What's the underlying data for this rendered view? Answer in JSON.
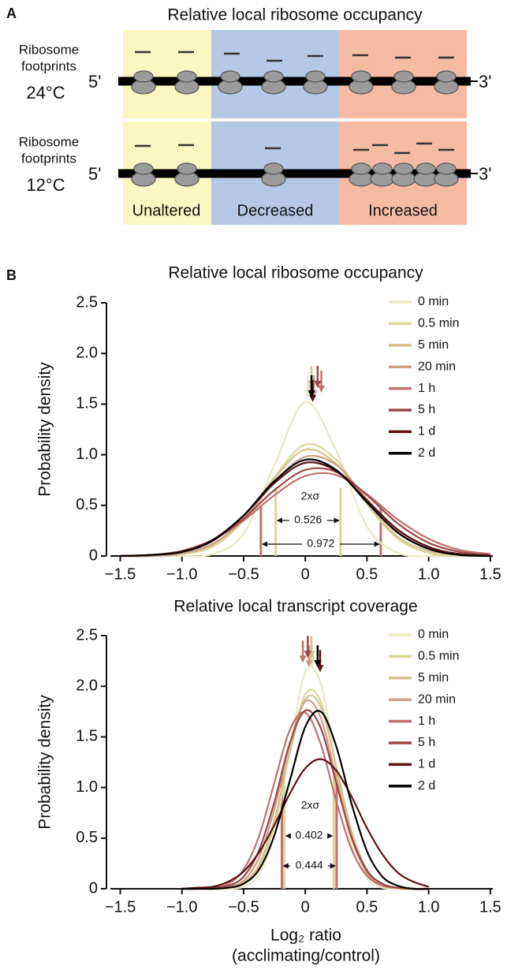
{
  "panel_a": {
    "label": "A",
    "title": "Relative local ribosome occupancy",
    "rows": [
      {
        "footprints": [
          "Ribosome",
          "footprints"
        ],
        "temperature": "24°C",
        "five_prime": "5'",
        "three_prime": "3'"
      },
      {
        "footprints": [
          "Ribosome",
          "footprints"
        ],
        "temperature": "12°C",
        "five_prime": "5'",
        "three_prime": "3'"
      }
    ],
    "regions": [
      "Unaltered",
      "Decreased",
      "Increased"
    ]
  },
  "panel_b_label": "B",
  "chart_data": [
    {
      "type": "line",
      "title": "Relative local ribosome occupancy",
      "y_label": "Probability density",
      "x": [
        -1.5,
        -1.25,
        -1,
        -0.75,
        -0.5,
        -0.25,
        0,
        0.25,
        0.5,
        0.75,
        1,
        1.25,
        1.5
      ],
      "xlim": [
        -1.58,
        1.52
      ],
      "ylim": [
        0,
        2.5
      ],
      "xticks": [
        {
          "value": -1.5,
          "label": "−1.5"
        },
        {
          "value": -1,
          "label": "−1.0"
        },
        {
          "value": -0.5,
          "label": "−0.5"
        },
        0,
        0.5,
        {
          "value": 1,
          "label": "1.0"
        },
        1.5
      ],
      "yticks": [
        0,
        0.5,
        {
          "value": 1,
          "label": "1.0"
        },
        1.5,
        {
          "value": 2,
          "label": "2.0"
        },
        2.5
      ],
      "legend": "upper right",
      "series": [
        {
          "name": "0 min",
          "color": "#ebe8c3",
          "mean": 0.02,
          "values": [
            0,
            0,
            0,
            0.02,
            0.22,
            0.9,
            1.52,
            1.04,
            0.29,
            0.03,
            0,
            0,
            0
          ]
        },
        {
          "name": "0.5 min",
          "color": "#dbd799",
          "mean": 0.05,
          "values": [
            0,
            0,
            0.02,
            0.09,
            0.35,
            0.78,
            1.1,
            0.95,
            0.51,
            0.17,
            0.03,
            0,
            0
          ]
        },
        {
          "name": "5 min",
          "color": "#d5bf8f",
          "mean": 0.05,
          "values": [
            0,
            0,
            0.02,
            0.11,
            0.37,
            0.77,
            1.05,
            0.91,
            0.52,
            0.19,
            0.05,
            0.01,
            0
          ]
        },
        {
          "name": "20 min",
          "color": "#cf9e85",
          "mean": 0.07,
          "values": [
            0,
            0,
            0.03,
            0.12,
            0.36,
            0.73,
            0.98,
            0.9,
            0.56,
            0.24,
            0.07,
            0.01,
            0
          ]
        },
        {
          "name": "1 h",
          "color": "#c26f6f",
          "mean": 0.13,
          "values": [
            0,
            0.01,
            0.05,
            0.16,
            0.35,
            0.6,
            0.79,
            0.8,
            0.61,
            0.36,
            0.17,
            0.06,
            0.02
          ]
        },
        {
          "name": "5 h",
          "color": "#994747",
          "mean": 0.1,
          "values": [
            0,
            0.01,
            0.05,
            0.16,
            0.37,
            0.65,
            0.85,
            0.83,
            0.6,
            0.32,
            0.13,
            0.04,
            0.01
          ]
        },
        {
          "name": "1 d",
          "color": "#5a1212",
          "mean": 0.06,
          "values": [
            0,
            0.01,
            0.04,
            0.16,
            0.4,
            0.72,
            0.92,
            0.84,
            0.55,
            0.26,
            0.09,
            0.02,
            0
          ]
        },
        {
          "name": "2 d",
          "color": "#000000",
          "mean": 0.05,
          "values": [
            0,
            0.01,
            0.04,
            0.15,
            0.4,
            0.74,
            0.95,
            0.85,
            0.53,
            0.23,
            0.07,
            0.01,
            0
          ]
        }
      ],
      "annotation": "2xσ",
      "sigma_bars": [
        {
          "width": 0.526,
          "x": [
            -0.24,
            0.286
          ],
          "color": "#dbd799"
        },
        {
          "width": 0.972,
          "x": [
            -0.36,
            0.612
          ],
          "color": "#c26f6f"
        }
      ]
    },
    {
      "type": "line",
      "title": "Relative local transcript coverage",
      "y_label": "Probability density",
      "x_label": "Log₂ ratio",
      "x_label_2": "(acclimating/control)",
      "x": [
        -1,
        -0.875,
        -0.75,
        -0.625,
        -0.5,
        -0.375,
        -0.25,
        -0.125,
        0,
        0.125,
        0.25,
        0.375,
        0.5,
        0.625,
        0.75,
        0.875,
        1
      ],
      "xlim": [
        -1.58,
        1.52
      ],
      "ylim": [
        0,
        2.5
      ],
      "xticks": [
        {
          "value": -1.5,
          "label": "−1.5"
        },
        {
          "value": -1,
          "label": "−1.0"
        },
        {
          "value": -0.5,
          "label": "−0.5"
        },
        0,
        0.5,
        {
          "value": 1,
          "label": "1.0"
        },
        1.5
      ],
      "yticks": [
        0,
        0.5,
        {
          "value": 1,
          "label": "1.0"
        },
        1.5,
        {
          "value": 2,
          "label": "2.0"
        },
        2.5
      ],
      "legend": "upper right",
      "series": [
        {
          "name": "0 min",
          "color": "#ebe8c3",
          "mean": 0.05,
          "values": [
            0,
            0,
            0,
            0,
            0.02,
            0.14,
            0.55,
            1.38,
            2.14,
            2.03,
            1.2,
            0.43,
            0.1,
            0.01,
            0,
            0,
            0
          ]
        },
        {
          "name": "0.5 min",
          "color": "#dbd799",
          "mean": 0.05,
          "values": [
            0,
            0,
            0,
            0.01,
            0.05,
            0.21,
            0.64,
            1.35,
            1.92,
            1.85,
            1.2,
            0.53,
            0.16,
            0.03,
            0,
            0,
            0
          ]
        },
        {
          "name": "5 min",
          "color": "#d5bf8f",
          "mean": 0.05,
          "values": [
            0,
            0,
            0,
            0.01,
            0.06,
            0.24,
            0.68,
            1.35,
            1.87,
            1.8,
            1.21,
            0.57,
            0.19,
            0.04,
            0.01,
            0,
            0
          ]
        },
        {
          "name": "20 min",
          "color": "#cf9e85",
          "mean": 0.03,
          "values": [
            0,
            0,
            0,
            0.02,
            0.08,
            0.31,
            0.79,
            1.43,
            1.85,
            1.69,
            1.1,
            0.5,
            0.16,
            0.04,
            0.01,
            0,
            0
          ]
        },
        {
          "name": "1 h",
          "color": "#c26f6f",
          "mean": -0.02,
          "values": [
            0,
            0,
            0.01,
            0.05,
            0.19,
            0.52,
            1.05,
            1.57,
            1.74,
            1.43,
            0.87,
            0.39,
            0.13,
            0.03,
            0.01,
            0,
            0
          ]
        },
        {
          "name": "5 h",
          "color": "#994747",
          "mean": 0.02,
          "values": [
            0,
            0,
            0.01,
            0.03,
            0.12,
            0.38,
            0.86,
            1.44,
            1.76,
            1.59,
            1.05,
            0.51,
            0.18,
            0.05,
            0.01,
            0,
            0
          ]
        },
        {
          "name": "1 d",
          "color": "#5a1212",
          "mean": 0.12,
          "values": [
            0,
            0.01,
            0.02,
            0.07,
            0.17,
            0.36,
            0.63,
            0.94,
            1.19,
            1.28,
            1.17,
            0.91,
            0.6,
            0.34,
            0.16,
            0.07,
            0.02
          ]
        },
        {
          "name": "2 d",
          "color": "#000000",
          "mean": 0.1,
          "values": [
            0,
            0,
            0,
            0.01,
            0.05,
            0.19,
            0.53,
            1.07,
            1.6,
            1.75,
            1.41,
            0.84,
            0.37,
            0.12,
            0.03,
            0,
            0
          ]
        }
      ],
      "annotation": "2xσ",
      "sigma_bars": [
        {
          "width": 0.402,
          "x": [
            -0.17,
            0.232
          ],
          "color": "#dbd799"
        },
        {
          "width": 0.444,
          "x": [
            -0.19,
            0.254
          ],
          "color": "#c26f6f"
        }
      ]
    }
  ]
}
